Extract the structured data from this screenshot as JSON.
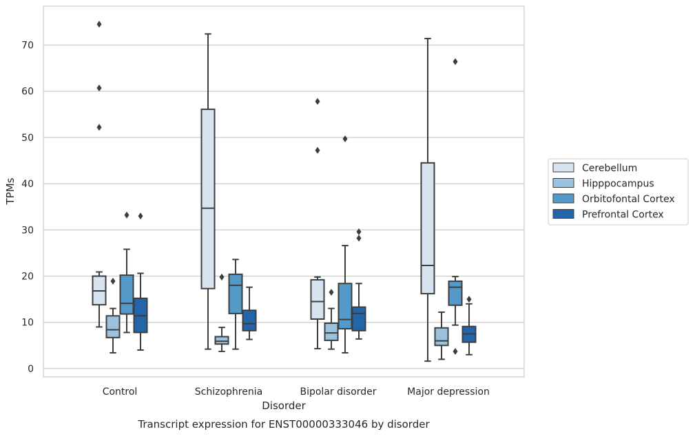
{
  "chart_data": {
    "type": "box",
    "caption": "Transcript expression for ENST00000333046 by disorder",
    "title": "",
    "xlabel": "Disorder",
    "ylabel": "TPMs",
    "categories": [
      "Control",
      "Schizophrenia",
      "Bipolar disorder",
      "Major depression"
    ],
    "ylim": [
      -1.8,
      78.4
    ],
    "yticks": [
      0,
      10,
      20,
      30,
      40,
      50,
      60,
      70
    ],
    "grid": "horizontal",
    "legend_position": "right",
    "series": [
      {
        "name": "Cerebellum",
        "color": "#d6e3f1",
        "boxes": [
          {
            "whisker_low": 9.0,
            "q1": 13.8,
            "median": 16.8,
            "q3": 20.0,
            "whisker_high": 20.9,
            "outliers": [
              52.2,
              60.7,
              74.5
            ]
          },
          {
            "whisker_low": 4.2,
            "q1": 17.3,
            "median": 34.7,
            "q3": 56.1,
            "whisker_high": 72.4,
            "outliers": []
          },
          {
            "whisker_low": 4.3,
            "q1": 10.7,
            "median": 14.5,
            "q3": 19.2,
            "whisker_high": 19.8,
            "outliers": [
              47.2,
              57.8
            ]
          },
          {
            "whisker_low": 1.6,
            "q1": 16.2,
            "median": 22.3,
            "q3": 44.5,
            "whisker_high": 71.4,
            "outliers": []
          }
        ]
      },
      {
        "name": "Hipppocampus",
        "color": "#9ac2de",
        "boxes": [
          {
            "whisker_low": 3.4,
            "q1": 6.7,
            "median": 8.4,
            "q3": 11.4,
            "whisker_high": 13.0,
            "outliers": [
              18.9
            ]
          },
          {
            "whisker_low": 3.7,
            "q1": 5.3,
            "median": 5.9,
            "q3": 6.9,
            "whisker_high": 8.9,
            "outliers": [
              19.8
            ]
          },
          {
            "whisker_low": 4.2,
            "q1": 6.1,
            "median": 7.7,
            "q3": 9.8,
            "whisker_high": 13.0,
            "outliers": [
              16.5
            ]
          },
          {
            "whisker_low": 2.0,
            "q1": 5.0,
            "median": 6.0,
            "q3": 8.8,
            "whisker_high": 12.2,
            "outliers": []
          }
        ]
      },
      {
        "name": "Orbitofontal Cortex",
        "color": "#5499c8",
        "boxes": [
          {
            "whisker_low": 7.8,
            "q1": 11.8,
            "median": 14.1,
            "q3": 20.2,
            "whisker_high": 25.8,
            "outliers": [
              33.2
            ]
          },
          {
            "whisker_low": 4.2,
            "q1": 11.9,
            "median": 18.0,
            "q3": 20.4,
            "whisker_high": 23.6,
            "outliers": []
          },
          {
            "whisker_low": 3.4,
            "q1": 8.6,
            "median": 10.6,
            "q3": 18.4,
            "whisker_high": 26.6,
            "outliers": [
              49.7
            ]
          },
          {
            "whisker_low": 9.4,
            "q1": 13.7,
            "median": 17.6,
            "q3": 18.9,
            "whisker_high": 19.9,
            "outliers": [
              3.7,
              66.4
            ]
          }
        ]
      },
      {
        "name": "Prefrontal Cortex",
        "color": "#2365aa",
        "boxes": [
          {
            "whisker_low": 4.0,
            "q1": 7.8,
            "median": 11.4,
            "q3": 15.2,
            "whisker_high": 20.6,
            "outliers": [
              33.0
            ]
          },
          {
            "whisker_low": 6.3,
            "q1": 8.2,
            "median": 9.7,
            "q3": 12.6,
            "whisker_high": 17.6,
            "outliers": []
          },
          {
            "whisker_low": 6.4,
            "q1": 8.2,
            "median": 11.9,
            "q3": 13.3,
            "whisker_high": 18.4,
            "outliers": [
              28.2,
              29.6
            ]
          },
          {
            "whisker_low": 3.0,
            "q1": 5.7,
            "median": 7.5,
            "q3": 9.1,
            "whisker_high": 14.0,
            "outliers": [
              15.0
            ]
          }
        ]
      }
    ]
  }
}
